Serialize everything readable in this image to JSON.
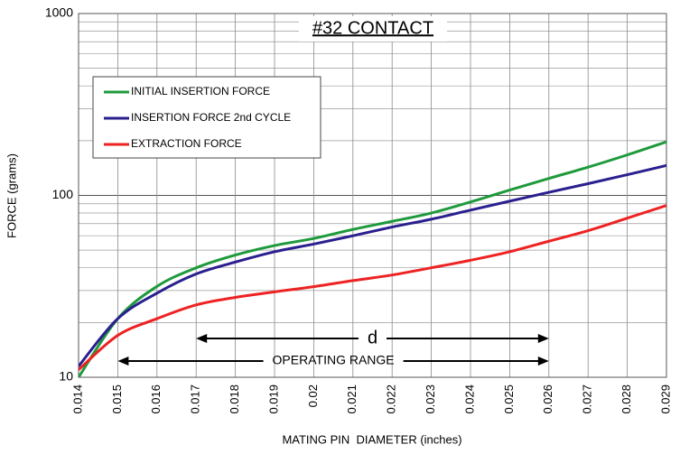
{
  "chart_data": {
    "type": "line",
    "title": "#32 CONTACT",
    "x_label": "MATING PIN  DIAMETER (inches)",
    "y_label": "FORCE (grams)",
    "x": [
      0.014,
      0.015,
      0.016,
      0.017,
      0.018,
      0.019,
      0.02,
      0.021,
      0.022,
      0.023,
      0.024,
      0.025,
      0.026,
      0.027,
      0.028,
      0.029
    ],
    "series": [
      {
        "name": "INITIAL INSERTION FORCE",
        "color": "#1e9a3c",
        "values": [
          10,
          21,
          31.6,
          40,
          47,
          53,
          58,
          65,
          72,
          80,
          92,
          107,
          124,
          143,
          167,
          197
        ]
      },
      {
        "name": "INSERTION FORCE 2nd CYCLE",
        "color": "#2a1f8f",
        "values": [
          11.5,
          21,
          29,
          37,
          43,
          49,
          54,
          60,
          67,
          74,
          83,
          93,
          104,
          116,
          130,
          146
        ]
      },
      {
        "name": "EXTRACTION FORCE",
        "color": "#ee2222",
        "values": [
          11,
          17,
          21,
          25,
          27.5,
          29.5,
          31.5,
          34,
          36.5,
          40,
          44,
          49,
          56,
          64,
          75,
          88
        ]
      }
    ],
    "xlim": [
      0.014,
      0.029
    ],
    "xticks": [
      0.014,
      0.015,
      0.016,
      0.017,
      0.018,
      0.019,
      0.02,
      0.021,
      0.022,
      0.023,
      0.024,
      0.025,
      0.026,
      0.027,
      0.028,
      0.029
    ],
    "ylim": [
      10,
      1000
    ],
    "yticks": [
      10,
      100,
      1000
    ],
    "log_y": true,
    "grid": true,
    "legend": "upper left",
    "annotations": [
      {
        "text": "d",
        "x": [
          0.017,
          0.026
        ]
      },
      {
        "text": "OPERATING RANGE",
        "x": [
          0.015,
          0.026
        ]
      }
    ]
  }
}
